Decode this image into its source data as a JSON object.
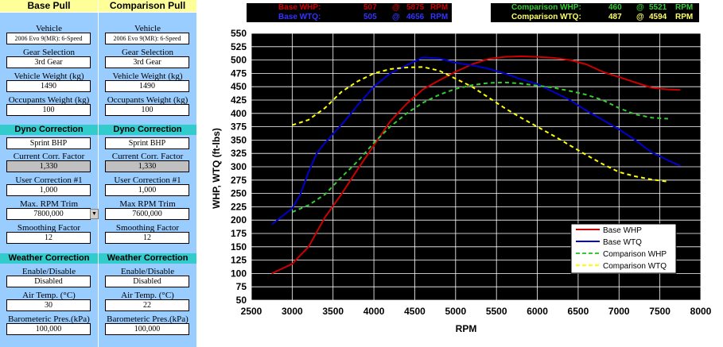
{
  "base_panel": {
    "title": "Base Pull",
    "vehicle_label": "Vehicle",
    "vehicle_value": "2006 Evo 9(MR): 6-Speed",
    "gear_label": "Gear Selection",
    "gear_value": "3rd Gear",
    "weight_label": "Vehicle Weight (kg)",
    "weight_value": "1490",
    "occupants_label": "Occupants Weight (kg)",
    "occupants_value": "100",
    "dyno_title": "Dyno Correction",
    "dyno_value": "Sprint BHP",
    "ccf_label": "Current Corr. Factor",
    "ccf_value": "1,330",
    "ucf_label": "User Correction #1",
    "ucf_value": "1,000",
    "rpm_trim_label": "Max. RPM Trim",
    "rpm_trim_value": "7800,000",
    "smoothing_label": "Smoothing Factor",
    "smoothing_value": "12",
    "weather_title": "Weather Correction",
    "enable_label": "Enable/Disable",
    "enable_value": "Disabled",
    "air_label": "Air Temp. (°C)",
    "air_value": "30",
    "baro_label": "Barometeric Pres.(kPa)",
    "baro_value": "100,000"
  },
  "comp_panel": {
    "title": "Comparison Pull",
    "vehicle_label": "Vehicle",
    "vehicle_value": "2006 Evo 9(MR): 6-Speed",
    "gear_label": "Gear Selection",
    "gear_value": "3rd Gear",
    "weight_label": "Vehicle Weight (kg)",
    "weight_value": "1490",
    "occupants_label": "Occupants Weight (kg)",
    "occupants_value": "100",
    "dyno_title": "Dyno Correction",
    "dyno_value": "Sprint BHP",
    "ccf_label": "Current Corr. Factor",
    "ccf_value": "1,330",
    "ucf_label": "User Correction #1",
    "ucf_value": "1,000",
    "rpm_trim_label": "Max RPM Trim",
    "rpm_trim_value": "7600,000",
    "smoothing_label": "Smoothing Factor",
    "smoothing_value": "12",
    "weather_title": "Weather Correction",
    "enable_label": "Enable/Disable",
    "enable_value": "Disabled",
    "air_label": "Air Temp. (°C)",
    "air_value": "22",
    "baro_label": "Barometeric Pres.(kPa)",
    "baro_value": "100,000"
  },
  "summary_base": {
    "whp_label": "Base WHP:",
    "whp_value": "507",
    "whp_at": "@",
    "whp_rpm": "5875",
    "whp_unit": "RPM",
    "wtq_label": "Base WTQ:",
    "wtq_value": "505",
    "wtq_at": "@",
    "wtq_rpm": "4656",
    "wtq_unit": "RPM",
    "whp_color": "#cc0000",
    "wtq_color": "#3333ff"
  },
  "summary_comp": {
    "whp_label": "Comparison WHP:",
    "whp_value": "460",
    "whp_at": "@",
    "whp_rpm": "5521",
    "whp_unit": "RPM",
    "wtq_label": "Comparison WTQ:",
    "wtq_value": "487",
    "wtq_at": "@",
    "wtq_rpm": "4594",
    "wtq_unit": "RPM",
    "whp_color": "#33cc33",
    "wtq_color": "#ffff66"
  },
  "chart_data": {
    "type": "line",
    "xlabel": "RPM",
    "ylabel": "WHP, WTQ (ft-lbs)",
    "xlim": [
      2500,
      8000
    ],
    "ylim": [
      50,
      550
    ],
    "xticks": [
      2500,
      3000,
      3500,
      4000,
      4500,
      5000,
      5500,
      6000,
      6500,
      7000,
      7500,
      8000
    ],
    "yticks": [
      50,
      75,
      100,
      125,
      150,
      175,
      200,
      225,
      250,
      275,
      300,
      325,
      350,
      375,
      400,
      425,
      450,
      475,
      500,
      525,
      550
    ],
    "grid": true,
    "legend_position": "bottom-right",
    "series": [
      {
        "name": "Base WHP",
        "color": "#cc0000",
        "dash": "solid",
        "x": [
          2750,
          3000,
          3200,
          3400,
          3600,
          3800,
          4000,
          4200,
          4400,
          4600,
          4800,
          5000,
          5200,
          5400,
          5600,
          5800,
          6000,
          6200,
          6400,
          6600,
          6800,
          7000,
          7200,
          7400,
          7600,
          7750
        ],
        "y": [
          100,
          118,
          150,
          205,
          248,
          295,
          340,
          385,
          418,
          445,
          462,
          478,
          492,
          502,
          506,
          507,
          506,
          504,
          500,
          492,
          478,
          468,
          458,
          448,
          445,
          444
        ]
      },
      {
        "name": "Base WTQ",
        "color": "#0000cc",
        "dash": "solid",
        "x": [
          2750,
          2900,
          3000,
          3100,
          3200,
          3300,
          3400,
          3600,
          3800,
          4000,
          4200,
          4400,
          4600,
          4800,
          5000,
          5200,
          5400,
          5600,
          5800,
          6000,
          6200,
          6400,
          6600,
          6800,
          7000,
          7200,
          7400,
          7600,
          7750
        ],
        "y": [
          192,
          210,
          222,
          248,
          290,
          325,
          345,
          378,
          415,
          450,
          475,
          490,
          505,
          503,
          495,
          490,
          484,
          475,
          464,
          455,
          440,
          425,
          405,
          388,
          370,
          350,
          327,
          312,
          302
        ]
      },
      {
        "name": "Comparison WHP",
        "color": "#33cc33",
        "dash": "dashed",
        "x": [
          3000,
          3200,
          3400,
          3600,
          3800,
          4000,
          4200,
          4400,
          4600,
          4800,
          5000,
          5200,
          5400,
          5600,
          5800,
          6000,
          6200,
          6400,
          6600,
          6800,
          7000,
          7200,
          7400,
          7600
        ],
        "y": [
          215,
          228,
          248,
          280,
          310,
          345,
          375,
          400,
          420,
          435,
          446,
          453,
          457,
          458,
          456,
          452,
          448,
          442,
          435,
          425,
          410,
          398,
          392,
          390
        ]
      },
      {
        "name": "Comparison WTQ",
        "color": "#ffff00",
        "dash": "dashed",
        "x": [
          3000,
          3200,
          3400,
          3600,
          3800,
          4000,
          4200,
          4400,
          4600,
          4800,
          5000,
          5200,
          5400,
          5600,
          5800,
          6000,
          6200,
          6400,
          6600,
          6800,
          7000,
          7200,
          7400,
          7600
        ],
        "y": [
          378,
          388,
          410,
          440,
          460,
          475,
          483,
          486,
          487,
          480,
          465,
          450,
          430,
          410,
          392,
          375,
          358,
          340,
          322,
          305,
          290,
          282,
          276,
          272
        ]
      }
    ]
  }
}
